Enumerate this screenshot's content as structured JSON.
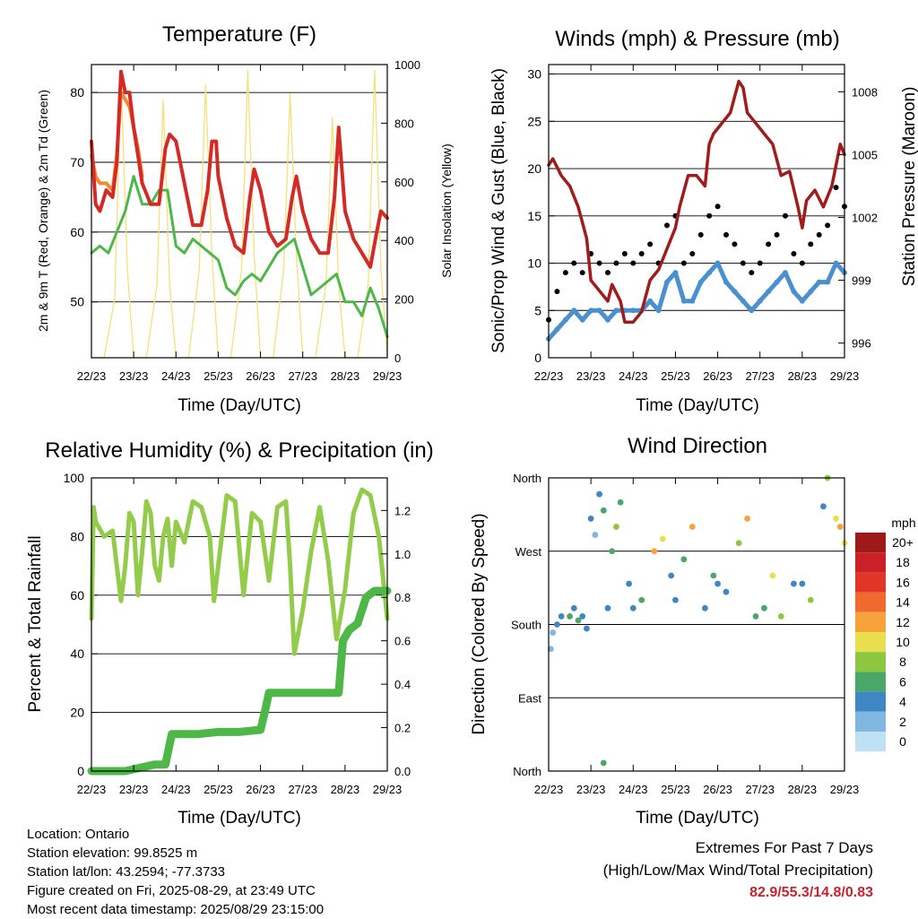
{
  "panels": {
    "temperature": {
      "title": "Temperature (F)",
      "xlabel": "Time (Day/UTC)",
      "ylabel_left": "2m & 9m T (Red, Orange) & 2m Td (Green)",
      "ylabel_right": "Solar Insolation (Yellow)"
    },
    "winds": {
      "title": "Winds (mph) & Pressure (mb)",
      "xlabel": "Time (Day/UTC)",
      "ylabel_left": "Sonic/Prop Wind & Gust (Blue, Black)",
      "ylabel_right": "Station Pressure (Maroon)"
    },
    "humidity": {
      "title": "Relative Humidity (%) & Precipitation (in)",
      "xlabel": "Time (Day/UTC)",
      "ylabel_left": "Percent & Total Rainfall"
    },
    "direction": {
      "title": "Wind Direction",
      "xlabel": "Time (Day/UTC)",
      "ylabel_left": "Direction (Colored By Speed)"
    }
  },
  "legend": {
    "unit": "mph",
    "labels": [
      "20+",
      "18",
      "16",
      "14",
      "12",
      "10",
      "8",
      "6",
      "4",
      "2",
      "0"
    ],
    "colors": [
      "#9e1a1a",
      "#c92127",
      "#e2352a",
      "#ef6a2c",
      "#f7a23a",
      "#e8df4f",
      "#8ec63f",
      "#4aa769",
      "#3f86c5",
      "#7fb7e0",
      "#bfe1f6"
    ]
  },
  "info": {
    "location": "Location: Ontario",
    "elevation": "Station elevation: 99.8525 m",
    "latlon": "Station lat/lon: 43.2594; -77.3733",
    "created": "Figure created on Fri, 2025-08-29, at 23:49 UTC",
    "recent": "Most recent data timestamp: 2025/08/29 23:15:00"
  },
  "extremes": {
    "line1": "Extremes For Past 7 Days",
    "line2": "(High/Low/Max Wind/Total Precipitation)",
    "values": "82.9/55.3/14.8/0.83"
  },
  "chart_data": [
    {
      "id": "temperature",
      "type": "line",
      "x_tick_labels": [
        "22/23",
        "23/23",
        "24/23",
        "25/23",
        "26/23",
        "27/23",
        "28/23",
        "29/23"
      ],
      "x_unit": "day offset from 22/23",
      "ylim": [
        42,
        84
      ],
      "y_ticks": [
        50,
        60,
        70,
        80
      ],
      "y2lim": [
        0,
        1000
      ],
      "y2_ticks": [
        0,
        200,
        400,
        600,
        800,
        1000
      ],
      "grid": true,
      "series": [
        {
          "color": "#d42a26",
          "axis": "left",
          "x": [
            0,
            0.1,
            0.2,
            0.35,
            0.5,
            0.6,
            0.7,
            0.8,
            0.9,
            1.0,
            1.1,
            1.2,
            1.4,
            1.6,
            1.75,
            1.85,
            2.0,
            2.2,
            2.4,
            2.6,
            2.75,
            2.85,
            2.95,
            3.0,
            3.2,
            3.4,
            3.6,
            3.75,
            3.85,
            4.0,
            4.2,
            4.4,
            4.6,
            4.75,
            4.85,
            5.0,
            5.2,
            5.4,
            5.6,
            5.75,
            5.85,
            6.0,
            6.2,
            6.4,
            6.6,
            6.75,
            6.85,
            7.0
          ],
          "values": [
            73,
            64,
            63,
            66,
            65,
            70,
            83,
            80,
            80,
            75,
            71,
            67,
            64,
            64,
            72,
            74,
            73,
            67,
            61,
            61,
            66,
            73,
            73,
            68,
            62,
            58,
            57,
            65,
            69,
            66,
            60,
            58,
            59,
            65,
            68,
            63,
            59,
            57,
            57,
            65,
            75,
            63,
            59,
            57,
            55,
            60,
            63,
            62
          ]
        },
        {
          "color": "#f08a30",
          "axis": "left",
          "x": [
            0,
            0.1,
            0.2,
            0.35,
            0.5,
            0.6,
            0.7,
            0.8,
            0.9,
            1.0,
            1.1,
            1.2
          ],
          "values": [
            71,
            68,
            67,
            67,
            66,
            71,
            80,
            79,
            78,
            75,
            72,
            68
          ]
        },
        {
          "color": "#4db848",
          "axis": "left",
          "x": [
            0,
            0.2,
            0.4,
            0.6,
            0.8,
            1.0,
            1.2,
            1.4,
            1.6,
            1.8,
            2.0,
            2.2,
            2.4,
            2.6,
            2.8,
            3.0,
            3.2,
            3.4,
            3.6,
            3.8,
            4.0,
            4.2,
            4.4,
            4.6,
            4.8,
            5.0,
            5.2,
            5.4,
            5.6,
            5.8,
            6.0,
            6.2,
            6.4,
            6.6,
            6.8,
            7.0
          ],
          "values": [
            57,
            58,
            57,
            60,
            63,
            68,
            64,
            64,
            66,
            66,
            58,
            57,
            59,
            58,
            57,
            56,
            52,
            51,
            53,
            54,
            53,
            55,
            57,
            58,
            59,
            55,
            51,
            52,
            53,
            54,
            50,
            50,
            48,
            52,
            49,
            45
          ]
        },
        {
          "color": "#f6e07a",
          "axis": "right",
          "x": [
            0,
            0.3,
            0.55,
            0.7,
            0.85,
            1.0,
            1.3,
            1.55,
            1.7,
            1.85,
            2.0,
            2.3,
            2.55,
            2.7,
            2.85,
            3.0,
            3.3,
            3.55,
            3.7,
            3.85,
            4.0,
            4.3,
            4.55,
            4.7,
            4.85,
            5.0,
            5.3,
            5.55,
            5.7,
            5.85,
            6.0,
            6.3,
            6.55,
            6.7,
            6.85,
            7.0
          ],
          "values": [
            0,
            0,
            200,
            960,
            300,
            0,
            0,
            250,
            880,
            250,
            0,
            0,
            300,
            930,
            350,
            0,
            0,
            300,
            980,
            350,
            0,
            0,
            300,
            900,
            350,
            0,
            0,
            250,
            820,
            250,
            0,
            0,
            250,
            980,
            300,
            0
          ]
        }
      ]
    },
    {
      "id": "winds",
      "type": "scatter",
      "x_tick_labels": [
        "22/23",
        "23/23",
        "24/23",
        "25/23",
        "26/23",
        "27/23",
        "28/23",
        "29/23"
      ],
      "ylim": [
        0,
        31
      ],
      "y_ticks": [
        0,
        5,
        10,
        15,
        20,
        25,
        30
      ],
      "y2lim": [
        995.3,
        1009.3
      ],
      "y2_ticks": [
        996,
        999,
        1002,
        1005,
        1008
      ],
      "grid": true,
      "series": [
        {
          "color": "#000000",
          "style": "points",
          "axis": "left",
          "x": [
            0,
            0.2,
            0.4,
            0.6,
            0.8,
            1.0,
            1.2,
            1.4,
            1.6,
            1.8,
            2.0,
            2.2,
            2.4,
            2.6,
            2.8,
            3.0,
            3.2,
            3.4,
            3.6,
            3.8,
            4.0,
            4.2,
            4.4,
            4.6,
            4.8,
            5.0,
            5.2,
            5.4,
            5.6,
            5.8,
            6.0,
            6.2,
            6.4,
            6.6,
            6.8,
            7.0
          ],
          "values": [
            4,
            7,
            9,
            10,
            9,
            11,
            10,
            9,
            10,
            11,
            10,
            11,
            12,
            10,
            14,
            15,
            10,
            11,
            13,
            15,
            16,
            13,
            12,
            10,
            9,
            10,
            12,
            13,
            15,
            11,
            10,
            12,
            13,
            14,
            18,
            16
          ]
        },
        {
          "color": "#4a90d0",
          "style": "points",
          "axis": "left",
          "x": [
            0,
            0.2,
            0.4,
            0.6,
            0.8,
            1.0,
            1.2,
            1.4,
            1.6,
            1.8,
            2.0,
            2.2,
            2.4,
            2.6,
            2.8,
            3.0,
            3.2,
            3.4,
            3.6,
            3.8,
            4.0,
            4.2,
            4.4,
            4.6,
            4.8,
            5.0,
            5.2,
            5.4,
            5.6,
            5.8,
            6.0,
            6.2,
            6.4,
            6.6,
            6.8,
            7.0
          ],
          "values": [
            2,
            3,
            4,
            5,
            4,
            5,
            5,
            4,
            5,
            5,
            5,
            5,
            6,
            5,
            8,
            9,
            6,
            6,
            8,
            9,
            10,
            8,
            7,
            6,
            5,
            6,
            7,
            8,
            9,
            7,
            6,
            7,
            8,
            8,
            10,
            9
          ]
        },
        {
          "color": "#a01c1c",
          "style": "line",
          "axis": "right",
          "x": [
            0,
            0.1,
            0.3,
            0.5,
            0.7,
            0.9,
            1.0,
            1.2,
            1.4,
            1.5,
            1.7,
            1.8,
            2.0,
            2.2,
            2.4,
            2.6,
            2.8,
            3.0,
            3.1,
            3.3,
            3.5,
            3.7,
            3.8,
            3.9,
            4.1,
            4.3,
            4.5,
            4.6,
            4.7,
            4.9,
            5.1,
            5.3,
            5.5,
            5.7,
            5.9,
            6.0,
            6.1,
            6.3,
            6.5,
            6.7,
            6.9,
            7.0
          ],
          "values": [
            1004.5,
            1004.8,
            1004,
            1003.5,
            1002.5,
            1001,
            999,
            998.5,
            998,
            998.8,
            998,
            997,
            997,
            997.5,
            999,
            999.5,
            1000.5,
            1001.5,
            1002.5,
            1004,
            1004,
            1003.5,
            1005.5,
            1006,
            1006.5,
            1007,
            1008.5,
            1008.2,
            1007,
            1006.5,
            1006,
            1005.5,
            1004,
            1004.2,
            1002.5,
            1001.5,
            1002.8,
            1003.3,
            1002.5,
            1003.5,
            1005.5,
            1005
          ]
        }
      ]
    },
    {
      "id": "humidity",
      "type": "line",
      "x_tick_labels": [
        "22/23",
        "23/23",
        "24/23",
        "25/23",
        "26/23",
        "27/23",
        "28/23",
        "29/23"
      ],
      "ylim": [
        0,
        100
      ],
      "y_ticks": [
        0,
        20,
        40,
        60,
        80,
        100
      ],
      "y2lim": [
        0,
        1.35
      ],
      "y2_ticks": [
        0,
        0.2,
        0.4,
        0.6,
        0.8,
        1.0,
        1.2
      ],
      "y2_tick_labels": [
        "0.0",
        "0.2",
        "0.4",
        "0.6",
        "0.8",
        "1.0",
        "1.2"
      ],
      "grid": true,
      "series": [
        {
          "color": "#92cc4a",
          "axis": "left",
          "x": [
            0,
            0.05,
            0.1,
            0.3,
            0.5,
            0.6,
            0.7,
            0.8,
            0.9,
            1.0,
            1.1,
            1.2,
            1.3,
            1.4,
            1.5,
            1.6,
            1.7,
            1.8,
            1.9,
            2.0,
            2.2,
            2.4,
            2.6,
            2.8,
            2.9,
            3.0,
            3.2,
            3.4,
            3.6,
            3.8,
            4.0,
            4.2,
            4.4,
            4.6,
            4.7,
            4.8,
            5.0,
            5.2,
            5.4,
            5.6,
            5.8,
            6.0,
            6.2,
            6.4,
            6.6,
            6.8,
            7.0
          ],
          "values": [
            52,
            90,
            85,
            80,
            82,
            70,
            58,
            70,
            88,
            85,
            60,
            75,
            92,
            88,
            70,
            65,
            80,
            86,
            70,
            85,
            78,
            92,
            90,
            80,
            58,
            70,
            94,
            92,
            60,
            88,
            85,
            65,
            90,
            92,
            70,
            40,
            55,
            75,
            90,
            72,
            45,
            62,
            88,
            96,
            94,
            80,
            52
          ]
        },
        {
          "color": "#4db848",
          "axis": "right",
          "x": [
            0,
            0.8,
            1.5,
            1.75,
            1.9,
            2.0,
            2.5,
            3.0,
            3.5,
            4.0,
            4.1,
            4.2,
            4.3,
            4.5,
            5.0,
            5.5,
            5.85,
            5.95,
            6.1,
            6.3,
            6.5,
            6.7,
            7.0
          ],
          "values": [
            0.0,
            0.0,
            0.03,
            0.03,
            0.17,
            0.17,
            0.17,
            0.18,
            0.18,
            0.19,
            0.27,
            0.36,
            0.36,
            0.36,
            0.36,
            0.36,
            0.36,
            0.6,
            0.65,
            0.68,
            0.8,
            0.83,
            0.83
          ]
        }
      ]
    },
    {
      "id": "direction",
      "type": "scatter",
      "x_tick_labels": [
        "22/23",
        "23/23",
        "24/23",
        "25/23",
        "26/23",
        "27/23",
        "28/23",
        "29/23"
      ],
      "y_tick_labels": [
        "North",
        "East",
        "South",
        "West",
        "North"
      ],
      "y_tick_values": [
        0,
        90,
        180,
        270,
        360
      ],
      "ylim": [
        0,
        360
      ],
      "grid": true,
      "points": {
        "x": [
          0.05,
          0.1,
          0.2,
          0.3,
          0.5,
          0.6,
          0.7,
          0.8,
          0.9,
          1.0,
          1.1,
          1.2,
          1.3,
          1.3,
          1.4,
          1.5,
          1.6,
          1.7,
          1.9,
          2.0,
          2.2,
          2.5,
          2.7,
          2.9,
          3.0,
          3.2,
          3.4,
          3.7,
          3.9,
          4.0,
          4.2,
          4.5,
          4.7,
          4.9,
          5.1,
          5.3,
          5.5,
          5.8,
          6.0,
          6.2,
          6.5,
          6.6,
          6.8,
          6.9,
          7.0
        ],
        "values": [
          150,
          170,
          180,
          190,
          190,
          200,
          185,
          190,
          175,
          310,
          290,
          340,
          10,
          320,
          200,
          270,
          300,
          330,
          230,
          200,
          210,
          270,
          285,
          240,
          210,
          260,
          300,
          200,
          240,
          230,
          220,
          280,
          310,
          190,
          200,
          240,
          190,
          230,
          230,
          210,
          325,
          360,
          310,
          300,
          280
        ],
        "speeds": [
          2,
          2,
          4,
          4,
          6,
          4,
          6,
          4,
          4,
          4,
          2,
          4,
          6,
          6,
          4,
          6,
          8,
          6,
          4,
          4,
          6,
          12,
          10,
          4,
          4,
          6,
          12,
          4,
          6,
          4,
          4,
          8,
          12,
          6,
          6,
          10,
          8,
          4,
          4,
          8,
          4,
          8,
          10,
          12,
          10
        ]
      }
    }
  ]
}
